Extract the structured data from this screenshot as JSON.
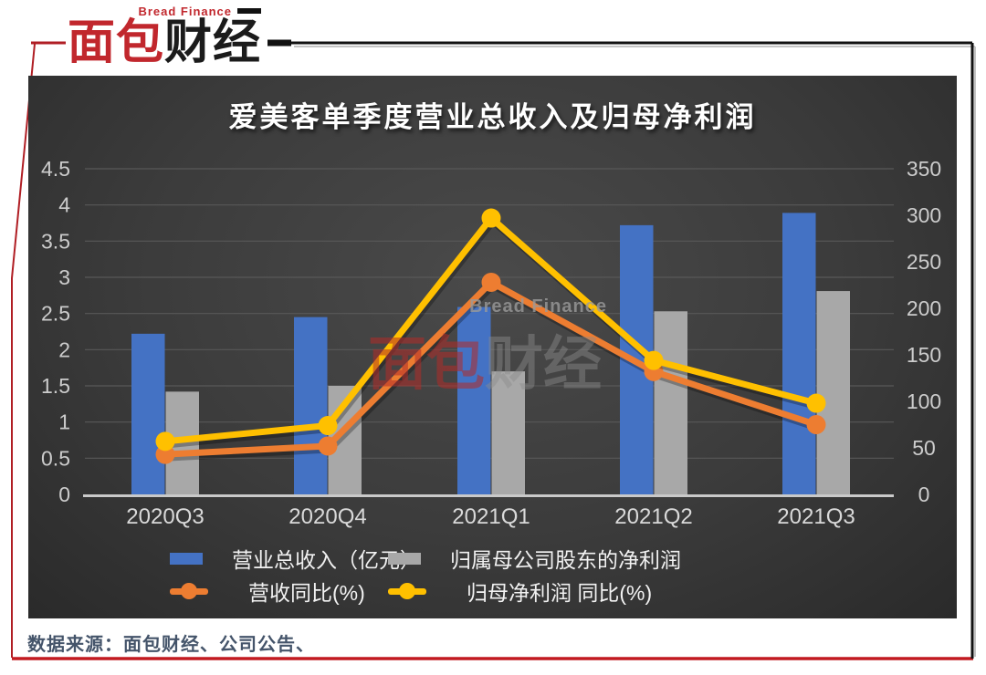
{
  "logo": {
    "brand_en": "Bread Finance",
    "brand_cn_red": "面包",
    "brand_cn_dark": "财经"
  },
  "watermark": {
    "en": "Bread Finance",
    "cn_red": "面包",
    "cn_gray": "财经"
  },
  "footer": {
    "source_text": "数据来源：面包财经、公司公告、"
  },
  "colors": {
    "revenue_bar": "#4472C4",
    "netprofit_bar": "#A8A8A8",
    "revenue_yoy_line": "#ED7D31",
    "netprofit_yoy_line": "#FFC000",
    "frame_red": "#b01e24",
    "bottom_line_red": "#c21a20",
    "panel_background": "#3b3b3b"
  },
  "chart_data": {
    "type": "bar",
    "combo": "bar+line",
    "title": "爱美客单季度营业总收入及归母净利润",
    "categories": [
      "2020Q3",
      "2020Q4",
      "2021Q1",
      "2021Q2",
      "2021Q3"
    ],
    "bar_series": [
      {
        "name": "营业总收入（亿元）",
        "axis": "left",
        "color": "#4472C4",
        "values": [
          2.22,
          2.45,
          2.59,
          3.72,
          3.89
        ]
      },
      {
        "name": "归属母公司股东的净利润",
        "axis": "left",
        "color": "#A8A8A8",
        "values": [
          1.42,
          1.5,
          1.7,
          2.53,
          2.81
        ]
      }
    ],
    "line_series": [
      {
        "name": "营收同比(%)",
        "axis": "right",
        "color": "#ED7D31",
        "values": [
          43,
          52,
          228,
          132,
          75
        ]
      },
      {
        "name": "归母净利润 同比(%)",
        "axis": "right",
        "color": "#FFC000",
        "values": [
          57,
          74,
          297,
          144,
          98
        ]
      }
    ],
    "left_axis": {
      "min": 0,
      "max": 4.5,
      "step": 0.5
    },
    "right_axis": {
      "min": 0,
      "max": 350,
      "step": 50
    },
    "grid": true,
    "legend_position": "bottom"
  }
}
